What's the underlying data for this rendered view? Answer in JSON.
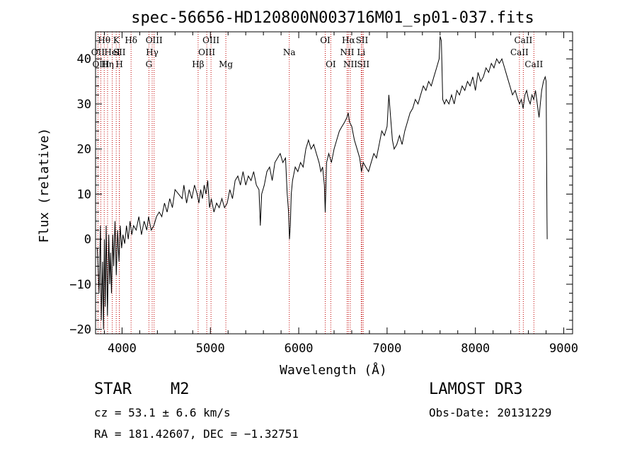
{
  "chart_data": {
    "type": "line",
    "title": "spec-56656-HD120800N003716M01_sp01-037.fits",
    "xlabel": "Wavelength (Å)",
    "ylabel": "Flux (relative)",
    "xlim": [
      3700,
      9100
    ],
    "ylim": [
      -21,
      46
    ],
    "x_ticks": [
      4000,
      5000,
      6000,
      7000,
      8000,
      9000
    ],
    "x_tick_labels": [
      "4000",
      "5000",
      "6000",
      "7000",
      "8000",
      "9000"
    ],
    "y_ticks": [
      -20,
      -10,
      0,
      10,
      20,
      30,
      40
    ],
    "y_tick_labels": [
      "−20",
      "−10",
      "0",
      "10",
      "20",
      "30",
      "40"
    ],
    "series": [
      {
        "name": "flux",
        "color": "#000000",
        "points": [
          [
            3720,
            -2
          ],
          [
            3740,
            -12
          ],
          [
            3755,
            3
          ],
          [
            3765,
            -18
          ],
          [
            3780,
            -5
          ],
          [
            3790,
            -20
          ],
          [
            3800,
            0
          ],
          [
            3810,
            -15
          ],
          [
            3820,
            3
          ],
          [
            3835,
            -17
          ],
          [
            3850,
            1
          ],
          [
            3860,
            -10
          ],
          [
            3870,
            -3
          ],
          [
            3880,
            -12
          ],
          [
            3895,
            1
          ],
          [
            3905,
            -6
          ],
          [
            3920,
            4
          ],
          [
            3935,
            -8
          ],
          [
            3950,
            2
          ],
          [
            3965,
            -5
          ],
          [
            3980,
            3
          ],
          [
            3995,
            -2
          ],
          [
            4010,
            1
          ],
          [
            4030,
            -1
          ],
          [
            4050,
            3
          ],
          [
            4070,
            0
          ],
          [
            4090,
            4
          ],
          [
            4110,
            1
          ],
          [
            4130,
            3
          ],
          [
            4160,
            2
          ],
          [
            4190,
            5
          ],
          [
            4220,
            1
          ],
          [
            4250,
            4
          ],
          [
            4280,
            2
          ],
          [
            4300,
            5
          ],
          [
            4330,
            2
          ],
          [
            4360,
            3
          ],
          [
            4390,
            5
          ],
          [
            4420,
            6
          ],
          [
            4450,
            5
          ],
          [
            4480,
            8
          ],
          [
            4510,
            6
          ],
          [
            4540,
            9
          ],
          [
            4570,
            7
          ],
          [
            4600,
            11
          ],
          [
            4640,
            10
          ],
          [
            4680,
            9
          ],
          [
            4700,
            12
          ],
          [
            4730,
            8
          ],
          [
            4760,
            11
          ],
          [
            4790,
            9
          ],
          [
            4820,
            12
          ],
          [
            4850,
            10
          ],
          [
            4870,
            8
          ],
          [
            4890,
            11
          ],
          [
            4910,
            9
          ],
          [
            4930,
            12
          ],
          [
            4950,
            10
          ],
          [
            4970,
            13
          ],
          [
            4990,
            7
          ],
          [
            5010,
            9
          ],
          [
            5040,
            6
          ],
          [
            5070,
            8
          ],
          [
            5100,
            7
          ],
          [
            5130,
            9
          ],
          [
            5160,
            7
          ],
          [
            5190,
            8
          ],
          [
            5220,
            11
          ],
          [
            5250,
            9
          ],
          [
            5280,
            13
          ],
          [
            5310,
            14
          ],
          [
            5340,
            12
          ],
          [
            5370,
            15
          ],
          [
            5400,
            12
          ],
          [
            5430,
            14
          ],
          [
            5460,
            13
          ],
          [
            5490,
            15
          ],
          [
            5520,
            12
          ],
          [
            5550,
            11
          ],
          [
            5565,
            3
          ],
          [
            5580,
            10
          ],
          [
            5610,
            12
          ],
          [
            5640,
            15
          ],
          [
            5670,
            16
          ],
          [
            5700,
            13
          ],
          [
            5730,
            17
          ],
          [
            5760,
            18
          ],
          [
            5790,
            19
          ],
          [
            5820,
            17
          ],
          [
            5850,
            18
          ],
          [
            5870,
            10
          ],
          [
            5885,
            6
          ],
          [
            5895,
            0
          ],
          [
            5905,
            3
          ],
          [
            5915,
            10
          ],
          [
            5930,
            13
          ],
          [
            5960,
            16
          ],
          [
            5990,
            15
          ],
          [
            6020,
            17
          ],
          [
            6050,
            16
          ],
          [
            6080,
            20
          ],
          [
            6110,
            22
          ],
          [
            6140,
            20
          ],
          [
            6170,
            21
          ],
          [
            6200,
            19
          ],
          [
            6230,
            17
          ],
          [
            6250,
            15
          ],
          [
            6270,
            16
          ],
          [
            6290,
            12
          ],
          [
            6300,
            6
          ],
          [
            6315,
            17
          ],
          [
            6340,
            19
          ],
          [
            6370,
            17
          ],
          [
            6400,
            20
          ],
          [
            6430,
            22
          ],
          [
            6460,
            24
          ],
          [
            6490,
            25
          ],
          [
            6520,
            26
          ],
          [
            6545,
            27
          ],
          [
            6560,
            28
          ],
          [
            6575,
            26
          ],
          [
            6600,
            25
          ],
          [
            6630,
            22
          ],
          [
            6660,
            20
          ],
          [
            6690,
            18
          ],
          [
            6710,
            15
          ],
          [
            6730,
            17
          ],
          [
            6760,
            16
          ],
          [
            6790,
            15
          ],
          [
            6820,
            17
          ],
          [
            6850,
            19
          ],
          [
            6880,
            18
          ],
          [
            6910,
            21
          ],
          [
            6940,
            24
          ],
          [
            6970,
            23
          ],
          [
            7000,
            25
          ],
          [
            7020,
            32
          ],
          [
            7040,
            27
          ],
          [
            7060,
            22
          ],
          [
            7080,
            20
          ],
          [
            7110,
            21
          ],
          [
            7140,
            23
          ],
          [
            7170,
            21
          ],
          [
            7200,
            24
          ],
          [
            7230,
            26
          ],
          [
            7260,
            28
          ],
          [
            7290,
            29
          ],
          [
            7320,
            31
          ],
          [
            7350,
            30
          ],
          [
            7380,
            32
          ],
          [
            7410,
            34
          ],
          [
            7440,
            33
          ],
          [
            7470,
            35
          ],
          [
            7500,
            34
          ],
          [
            7530,
            36
          ],
          [
            7560,
            38
          ],
          [
            7590,
            40
          ],
          [
            7600,
            45
          ],
          [
            7615,
            44
          ],
          [
            7630,
            31
          ],
          [
            7650,
            30
          ],
          [
            7670,
            31
          ],
          [
            7700,
            30
          ],
          [
            7730,
            32
          ],
          [
            7760,
            30
          ],
          [
            7790,
            33
          ],
          [
            7820,
            32
          ],
          [
            7850,
            34
          ],
          [
            7880,
            33
          ],
          [
            7910,
            35
          ],
          [
            7940,
            34
          ],
          [
            7970,
            36
          ],
          [
            8000,
            33
          ],
          [
            8030,
            37
          ],
          [
            8060,
            35
          ],
          [
            8090,
            36
          ],
          [
            8120,
            38
          ],
          [
            8150,
            37
          ],
          [
            8180,
            39
          ],
          [
            8210,
            38
          ],
          [
            8240,
            40
          ],
          [
            8270,
            39
          ],
          [
            8300,
            40
          ],
          [
            8330,
            38
          ],
          [
            8360,
            36
          ],
          [
            8390,
            34
          ],
          [
            8420,
            32
          ],
          [
            8450,
            33
          ],
          [
            8480,
            31
          ],
          [
            8500,
            30
          ],
          [
            8520,
            31
          ],
          [
            8540,
            29
          ],
          [
            8560,
            32
          ],
          [
            8580,
            33
          ],
          [
            8600,
            31
          ],
          [
            8620,
            30
          ],
          [
            8640,
            32
          ],
          [
            8660,
            31
          ],
          [
            8680,
            33
          ],
          [
            8700,
            30
          ],
          [
            8720,
            27
          ],
          [
            8735,
            30
          ],
          [
            8750,
            33
          ],
          [
            8770,
            35
          ],
          [
            8790,
            36
          ],
          [
            8800,
            35
          ],
          [
            8810,
            5
          ],
          [
            8812,
            0
          ]
        ]
      }
    ],
    "line_markers": [
      {
        "label": "Hθ",
        "wavelength": 3798,
        "row": 1
      },
      {
        "label": "OII",
        "wavelength": 3727,
        "row": 2
      },
      {
        "label": "OIII",
        "wavelength": 3760,
        "row": 3
      },
      {
        "label": "Hη",
        "wavelength": 3836,
        "row": 3
      },
      {
        "label": "HeI",
        "wavelength": 3889,
        "row": 2
      },
      {
        "label": "K",
        "wavelength": 3934,
        "row": 1
      },
      {
        "label": "SII",
        "wavelength": 3970,
        "row": 2
      },
      {
        "label": "H",
        "wavelength": 3969,
        "row": 3
      },
      {
        "label": "Hδ",
        "wavelength": 4102,
        "row": 1
      },
      {
        "label": "OIII",
        "wavelength": 4363,
        "row": 1
      },
      {
        "label": "Hγ",
        "wavelength": 4341,
        "row": 2
      },
      {
        "label": "G",
        "wavelength": 4304,
        "row": 3
      },
      {
        "label": "Hβ",
        "wavelength": 4861,
        "row": 3
      },
      {
        "label": "OIII",
        "wavelength": 5007,
        "row": 1
      },
      {
        "label": "OIII",
        "wavelength": 4959,
        "row": 2
      },
      {
        "label": "Mg",
        "wavelength": 5175,
        "row": 3
      },
      {
        "label": "Na",
        "wavelength": 5893,
        "row": 2
      },
      {
        "label": "OI",
        "wavelength": 6300,
        "row": 1
      },
      {
        "label": "OI",
        "wavelength": 6363,
        "row": 3
      },
      {
        "label": "Hα",
        "wavelength": 6563,
        "row": 1
      },
      {
        "label": "SII",
        "wavelength": 6716,
        "row": 1
      },
      {
        "label": "NII",
        "wavelength": 6548,
        "row": 2
      },
      {
        "label": "Li",
        "wavelength": 6707,
        "row": 2
      },
      {
        "label": "NII",
        "wavelength": 6584,
        "row": 3
      },
      {
        "label": "SII",
        "wavelength": 6731,
        "row": 3
      },
      {
        "label": "CaII",
        "wavelength": 8542,
        "row": 1
      },
      {
        "label": "CaII",
        "wavelength": 8498,
        "row": 2
      },
      {
        "label": "CaII",
        "wavelength": 8662,
        "row": 3
      }
    ],
    "marker_color": "#c00000"
  },
  "info": {
    "object_class": "STAR",
    "subclass": "M2",
    "survey": "LAMOST DR3",
    "cz": "cz = 53.1 ± 6.6 km/s",
    "obs_date": "Obs-Date: 20131229",
    "coords": "RA = 181.42607, DEC =  −1.32751"
  }
}
